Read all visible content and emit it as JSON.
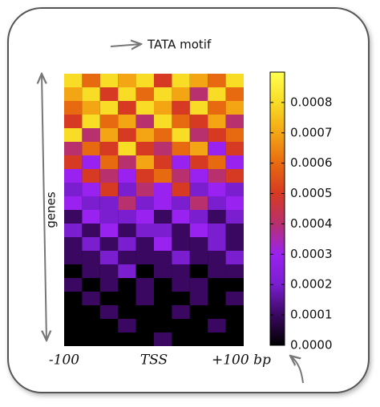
{
  "chart_data": {
    "type": "heatmap",
    "annotation": "TATA motif",
    "ylabel": "genes",
    "xlim": [
      -100,
      100
    ],
    "xticks": [
      {
        "value": -100,
        "label": "-100"
      },
      {
        "value": 0,
        "label": "TSS"
      },
      {
        "value": 100,
        "label": "+100 bp"
      }
    ],
    "clim": [
      0,
      0.0009
    ],
    "cticks": [
      {
        "value": 0,
        "label": "0.0000"
      },
      {
        "value": 0.0001,
        "label": "0.0001"
      },
      {
        "value": 0.0002,
        "label": "0.0002"
      },
      {
        "value": 0.0003,
        "label": "0.0003"
      },
      {
        "value": 0.0004,
        "label": "0.0004"
      },
      {
        "value": 0.0005,
        "label": "0.0005"
      },
      {
        "value": 0.0006,
        "label": "0.0006"
      },
      {
        "value": 0.0007,
        "label": "0.0007"
      },
      {
        "value": 0.0008,
        "label": "0.0008"
      }
    ],
    "colormap": [
      "#000000",
      "#3a0860",
      "#7a1ed0",
      "#9a22f0",
      "#b8306e",
      "#d63a22",
      "#e86a10",
      "#f3a514",
      "#f8dc26",
      "#ffff50"
    ],
    "values": [
      [
        0.0008,
        0.0006,
        0.0008,
        0.0007,
        0.0008,
        0.0005,
        0.0008,
        0.0007,
        0.0006,
        0.0008
      ],
      [
        0.0007,
        0.0008,
        0.0005,
        0.0008,
        0.0006,
        0.0008,
        0.0007,
        0.0004,
        0.0008,
        0.0006
      ],
      [
        0.0006,
        0.0007,
        0.0008,
        0.0005,
        0.0008,
        0.0007,
        0.0005,
        0.0008,
        0.0006,
        0.0007
      ],
      [
        0.0005,
        0.0008,
        0.0006,
        0.0007,
        0.0004,
        0.0008,
        0.0006,
        0.0005,
        0.0007,
        0.0004
      ],
      [
        0.0008,
        0.0004,
        0.0007,
        0.0005,
        0.0007,
        0.0006,
        0.0008,
        0.0004,
        0.0005,
        0.0006
      ],
      [
        0.0004,
        0.0006,
        0.0005,
        0.0008,
        0.0005,
        0.0004,
        0.0006,
        0.0007,
        0.0003,
        0.0005
      ],
      [
        0.0005,
        0.0003,
        0.0006,
        0.0004,
        0.0007,
        0.0005,
        0.0003,
        0.0005,
        0.0006,
        0.0003
      ],
      [
        0.0003,
        0.0005,
        0.0004,
        0.0003,
        0.0005,
        0.0006,
        0.0004,
        0.0003,
        0.0004,
        0.0005
      ],
      [
        0.0002,
        0.0003,
        0.0005,
        0.0002,
        0.0004,
        0.0003,
        0.0005,
        0.0002,
        0.0003,
        0.0002
      ],
      [
        0.0003,
        0.0002,
        0.0002,
        0.0004,
        0.0002,
        0.0003,
        0.0002,
        0.0004,
        0.0002,
        0.0003
      ],
      [
        0.0001,
        0.0003,
        0.0002,
        0.0002,
        0.0003,
        0.0001,
        0.0003,
        0.0002,
        0.0001,
        0.0002
      ],
      [
        0.0002,
        0.0001,
        0.0003,
        0.0001,
        0.0002,
        0.0002,
        0.0001,
        0.0003,
        0.0002,
        0.0001
      ],
      [
        0.0001,
        0.0002,
        0.0001,
        0.0002,
        0.0001,
        0.0003,
        0.0001,
        0.0001,
        0.0002,
        0.0001
      ],
      [
        0.0001,
        0.0001,
        0.0002,
        0.0001,
        0.0001,
        0.0001,
        0.0002,
        0.0001,
        0.0001,
        0.0002
      ],
      [
        0,
        0.0001,
        0.0001,
        0.0002,
        0,
        0.0001,
        0.0001,
        0,
        0.0001,
        0.0001
      ],
      [
        0.0001,
        0,
        0.0001,
        0,
        0.0001,
        0,
        0.0001,
        0.0001,
        0,
        0
      ],
      [
        0,
        0.0001,
        0,
        0,
        0.0001,
        0,
        0,
        0.0001,
        0,
        0.0001
      ],
      [
        0,
        0,
        0.0001,
        0,
        0,
        0,
        0.0001,
        0,
        0,
        0
      ],
      [
        0,
        0,
        0,
        0.0001,
        0,
        0,
        0,
        0,
        0.0001,
        0
      ],
      [
        0,
        0,
        0,
        0,
        0,
        0.0001,
        0,
        0,
        0,
        0
      ]
    ]
  }
}
